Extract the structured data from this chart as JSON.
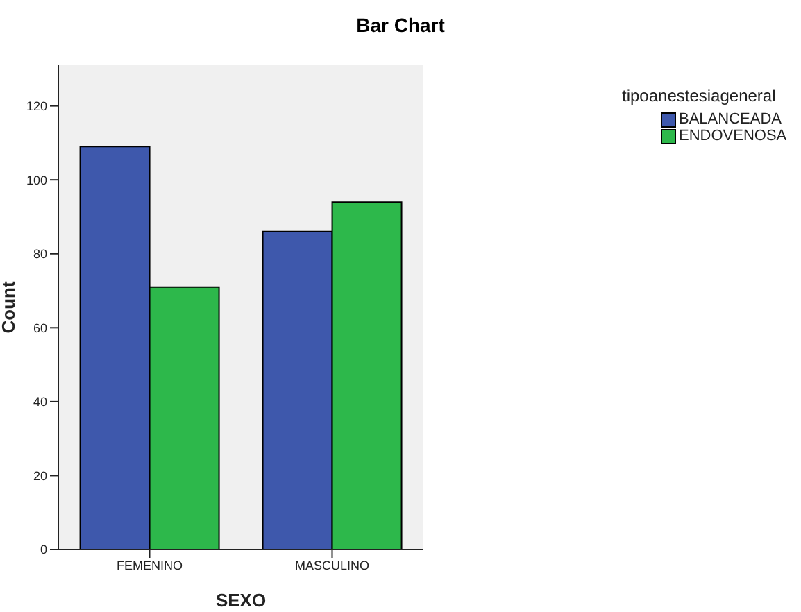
{
  "chart_data": {
    "type": "bar",
    "title": "Bar Chart",
    "xlabel": "SEXO",
    "ylabel": "Count",
    "legend_title": "tipoanestesiageneral",
    "categories": [
      "FEMENINO",
      "MASCULINO"
    ],
    "series": [
      {
        "name": "BALANCEADA",
        "color": "#3e58ac",
        "values": [
          109,
          86
        ]
      },
      {
        "name": "ENDOVENOSA",
        "color": "#2db84b",
        "values": [
          71,
          94
        ]
      }
    ],
    "ylim": [
      0,
      131
    ],
    "yticks": [
      0,
      20,
      40,
      60,
      80,
      100,
      120
    ],
    "grid": false,
    "legend": "top right"
  }
}
